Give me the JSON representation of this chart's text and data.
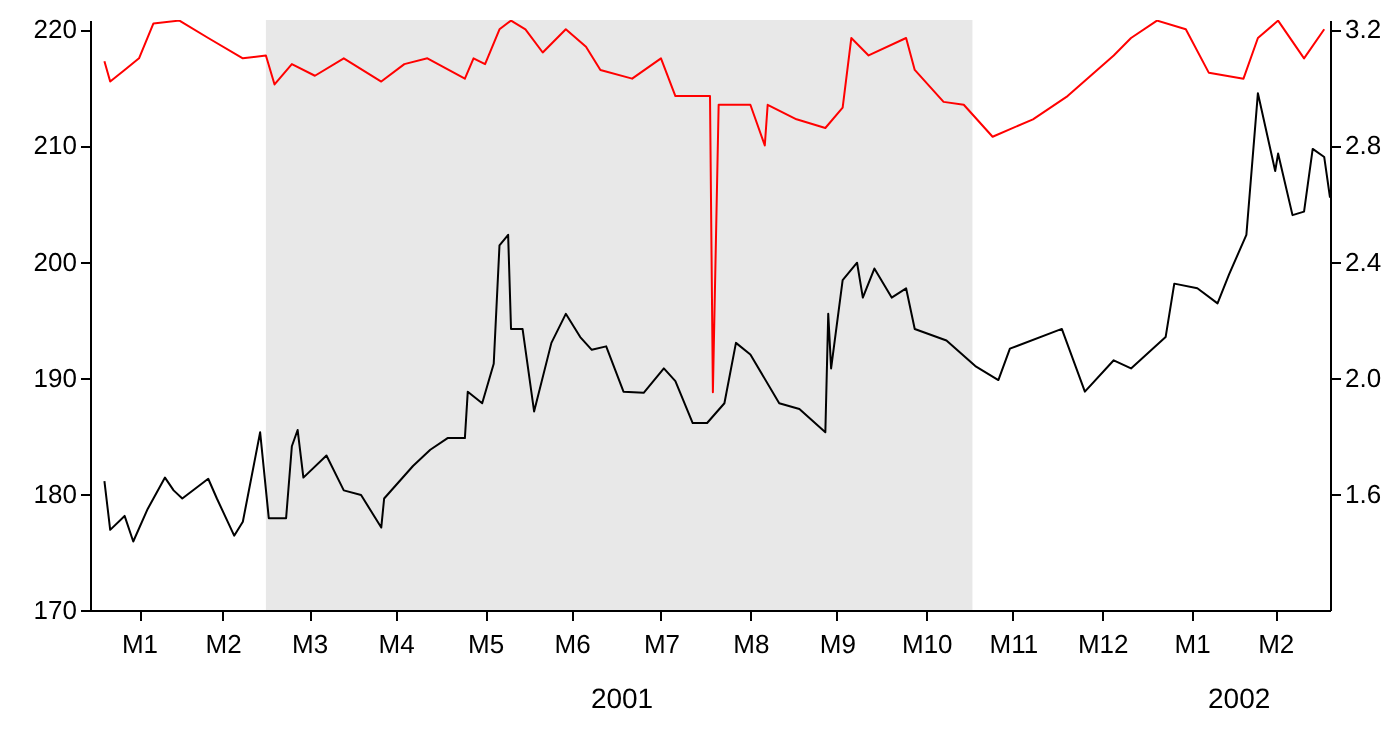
{
  "chart_data": {
    "type": "line",
    "xlim": [
      "2000-12-30",
      "2002-03-05"
    ],
    "ylim": [
      170,
      220.8
    ],
    "yticks": [
      170,
      180,
      190,
      200,
      210,
      220
    ],
    "y2lim": [
      1.2,
      3.232
    ],
    "y2ticks": [
      1.6,
      {
        "value": 2,
        "label": "2.0"
      },
      2.4,
      2.8,
      3.2
    ],
    "xticks": [
      {
        "value": "2001-01-16",
        "label": "M1"
      },
      {
        "value": "2001-02-14",
        "label": "M2"
      },
      {
        "value": "2001-03-16",
        "label": "M3"
      },
      {
        "value": "2001-04-15",
        "label": "M4"
      },
      {
        "value": "2001-05-16",
        "label": "M5"
      },
      {
        "value": "2001-06-15",
        "label": "M6"
      },
      {
        "value": "2001-07-16",
        "label": "M7"
      },
      {
        "value": "2001-08-16",
        "label": "M8"
      },
      {
        "value": "2001-09-15",
        "label": "M9"
      },
      {
        "value": "2001-10-16",
        "label": "M10"
      },
      {
        "value": "2001-11-15",
        "label": "M11"
      },
      {
        "value": "2001-12-16",
        "label": "M12"
      },
      {
        "value": "2002-01-16",
        "label": "M1"
      },
      {
        "value": "2002-02-14",
        "label": "M2"
      }
    ],
    "grid": false,
    "bands": [
      {
        "axis": "x",
        "from": "2001-03-01",
        "to": "2001-11-01",
        "color": "#e8e8e8"
      }
    ],
    "annotations": [
      "2001",
      "2002"
    ],
    "series": [
      {
        "color": "#000000",
        "x": [
          "2001-01-04",
          "2001-01-06",
          "2001-01-11",
          "2001-01-14",
          "2001-01-19",
          "2001-01-25",
          "2001-01-28",
          "2001-01-31",
          "2001-02-09",
          "2001-02-12",
          "2001-02-18",
          "2001-02-21",
          "2001-02-27",
          "2001-03-02",
          "2001-03-08",
          "2001-03-10",
          "2001-03-12",
          "2001-03-14",
          "2001-03-22",
          "2001-03-28",
          "2001-04-03",
          "2001-04-10",
          "2001-04-11",
          "2001-04-21",
          "2001-04-27",
          "2001-05-03",
          "2001-05-09",
          "2001-05-10",
          "2001-05-15",
          "2001-05-19",
          "2001-05-21",
          "2001-05-24",
          "2001-05-25",
          "2001-05-29",
          "2001-06-02",
          "2001-06-08",
          "2001-06-13",
          "2001-06-18",
          "2001-06-22",
          "2001-06-27",
          "2001-07-03",
          "2001-07-10",
          "2001-07-17",
          "2001-07-21",
          "2001-07-27",
          "2001-08-01",
          "2001-08-07",
          "2001-08-11",
          "2001-08-16",
          "2001-08-26",
          "2001-09-02",
          "2001-09-11",
          "2001-09-12",
          "2001-09-13",
          "2001-09-17",
          "2001-09-22",
          "2001-09-24",
          "2001-09-28",
          "2001-10-04",
          "2001-10-09",
          "2001-10-12",
          "2001-10-23",
          "2001-11-02",
          "2001-11-10",
          "2001-11-14",
          "2001-12-02",
          "2001-12-10",
          "2001-12-20",
          "2001-12-26",
          "2002-01-07",
          "2002-01-10",
          "2002-01-18",
          "2002-01-25",
          "2002-01-29",
          "2002-02-04",
          "2002-02-08",
          "2002-02-14",
          "2002-02-15",
          "2002-02-20",
          "2002-02-24",
          "2002-02-27",
          "2002-03-03",
          "2002-03-05"
        ],
        "values": [
          181.1,
          176.9,
          178.1,
          175.9,
          178.7,
          181.4,
          180.3,
          179.6,
          181.3,
          179.6,
          176.4,
          177.6,
          185.3,
          177.9,
          177.9,
          184.1,
          185.5,
          181.4,
          183.3,
          180.3,
          179.9,
          177.1,
          179.6,
          182.4,
          183.8,
          184.8,
          184.8,
          188.8,
          187.8,
          191.2,
          201.4,
          202.3,
          194.2,
          194.2,
          187.1,
          193.0,
          195.5,
          193.5,
          192.4,
          192.7,
          188.8,
          188.7,
          190.8,
          189.7,
          186.1,
          186.1,
          187.8,
          193.0,
          192.0,
          187.8,
          187.3,
          185.3,
          195.5,
          190.8,
          198.4,
          199.9,
          196.9,
          199.4,
          196.9,
          197.7,
          194.2,
          193.2,
          191.0,
          189.8,
          192.5,
          194.2,
          188.8,
          191.5,
          190.8,
          193.5,
          198.1,
          197.7,
          196.4,
          198.9,
          202.3,
          214.5,
          207.8,
          209.3,
          204.0,
          204.3,
          209.7,
          209.0,
          205.5
        ]
      },
      {
        "color": "#ff0000",
        "axis": "y2",
        "x": [
          "2001-01-04",
          "2001-01-06",
          "2001-01-11",
          "2001-01-16",
          "2001-01-21",
          "2001-01-30",
          "2001-02-09",
          "2001-02-21",
          "2001-03-01",
          "2001-03-04",
          "2001-03-10",
          "2001-03-18",
          "2001-03-28",
          "2001-04-10",
          "2001-04-18",
          "2001-04-26",
          "2001-05-09",
          "2001-05-12",
          "2001-05-16",
          "2001-05-21",
          "2001-05-25",
          "2001-05-30",
          "2001-06-05",
          "2001-06-13",
          "2001-06-20",
          "2001-06-25",
          "2001-07-06",
          "2001-07-16",
          "2001-07-21",
          "2001-08-02",
          "2001-08-03",
          "2001-08-05",
          "2001-08-16",
          "2001-08-21",
          "2001-08-22",
          "2001-09-01",
          "2001-09-11",
          "2001-09-17",
          "2001-09-20",
          "2001-09-26",
          "2001-10-09",
          "2001-10-12",
          "2001-10-22",
          "2001-10-29",
          "2001-11-08",
          "2001-11-22",
          "2001-12-04",
          "2001-12-20",
          "2001-12-26",
          "2002-01-04",
          "2002-01-14",
          "2002-01-22",
          "2002-02-03",
          "2002-02-08",
          "2002-02-15",
          "2002-02-24",
          "2002-03-03"
        ],
        "values": [
          3.09,
          3.02,
          3.06,
          3.1,
          3.22,
          3.23,
          3.17,
          3.1,
          3.11,
          3.01,
          3.08,
          3.04,
          3.1,
          3.02,
          3.08,
          3.1,
          3.03,
          3.1,
          3.08,
          3.2,
          3.23,
          3.2,
          3.12,
          3.2,
          3.14,
          3.06,
          3.03,
          3.1,
          2.97,
          2.97,
          1.95,
          2.94,
          2.94,
          2.8,
          2.94,
          2.89,
          2.86,
          2.93,
          3.17,
          3.11,
          3.17,
          3.06,
          2.95,
          2.94,
          2.83,
          2.89,
          2.97,
          3.11,
          3.17,
          3.23,
          3.2,
          3.05,
          3.03,
          3.17,
          3.23,
          3.1,
          3.2
        ]
      }
    ]
  }
}
